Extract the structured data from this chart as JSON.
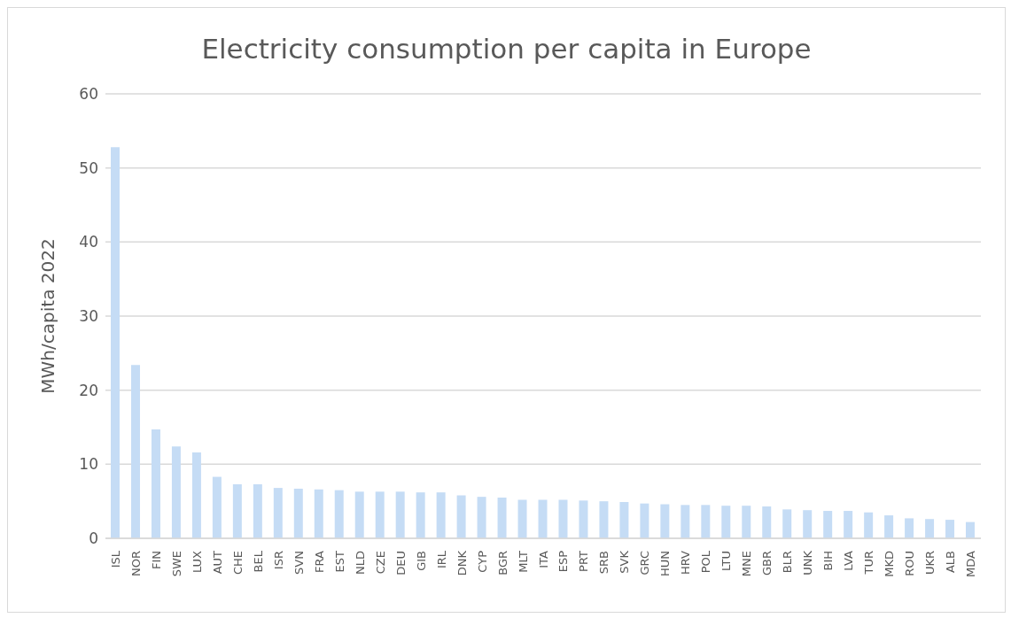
{
  "chart_data": {
    "type": "bar",
    "title": "Electricity consumption per capita in Europe",
    "ylabel": "MWh/capita 2022",
    "categories": [
      "ISL",
      "NOR",
      "FIN",
      "SWE",
      "LUX",
      "AUT",
      "CHE",
      "BEL",
      "ISR",
      "SVN",
      "FRA",
      "EST",
      "NLD",
      "CZE",
      "DEU",
      "GIB",
      "IRL",
      "DNK",
      "CYP",
      "BGR",
      "MLT",
      "ITA",
      "ESP",
      "PRT",
      "SRB",
      "SVK",
      "GRC",
      "HUN",
      "HRV",
      "POL",
      "LTU",
      "MNE",
      "GBR",
      "BLR",
      "UNK",
      "BIH",
      "LVA",
      "TUR",
      "MKD",
      "ROU",
      "UKR",
      "ALB",
      "MDA"
    ],
    "values": [
      52.8,
      23.4,
      14.7,
      12.4,
      11.6,
      8.3,
      7.3,
      7.3,
      6.8,
      6.7,
      6.6,
      6.5,
      6.3,
      6.3,
      6.3,
      6.2,
      6.2,
      5.8,
      5.6,
      5.5,
      5.2,
      5.2,
      5.2,
      5.1,
      5.0,
      4.9,
      4.7,
      4.6,
      4.5,
      4.5,
      4.4,
      4.4,
      4.3,
      3.9,
      3.8,
      3.7,
      3.7,
      3.5,
      3.1,
      2.7,
      2.6,
      2.5,
      2.2
    ],
    "color": "#c5dcf5",
    "ylim": [
      0,
      60
    ],
    "yticks": [
      0,
      10,
      20,
      30,
      40,
      50,
      60
    ],
    "grid": "y"
  }
}
